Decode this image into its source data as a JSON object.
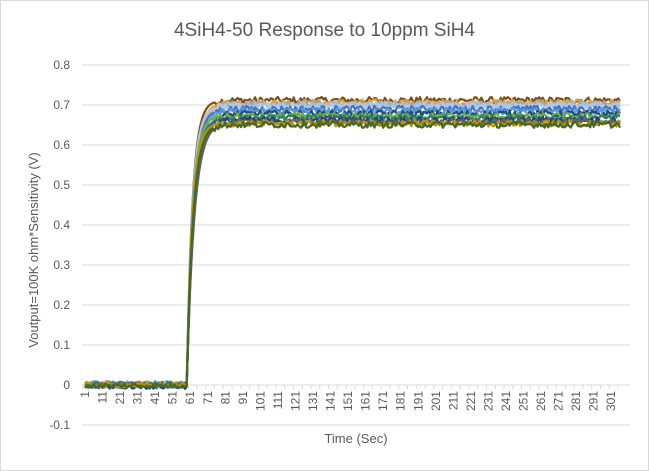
{
  "chart_data": {
    "type": "line",
    "title": "4SiH4-50 Response to 10ppm SiH4",
    "xlabel": "Time (Sec)",
    "ylabel": "Voutput=100K ohm*Sensitivity (V)",
    "ylim": [
      -0.1,
      0.8
    ],
    "y_ticks": [
      "-0.1",
      "0",
      "0.1",
      "0.2",
      "0.3",
      "0.4",
      "0.5",
      "0.6",
      "0.7",
      "0.8"
    ],
    "x_tick_labels": [
      "1",
      "11",
      "21",
      "31",
      "41",
      "51",
      "61",
      "71",
      "81",
      "91",
      "101",
      "111",
      "121",
      "131",
      "141",
      "151",
      "161",
      "171",
      "181",
      "191",
      "201",
      "211",
      "221",
      "231",
      "241",
      "251",
      "261",
      "271",
      "281",
      "291",
      "301"
    ],
    "x_range": [
      1,
      310
    ],
    "step_time": 59,
    "grid": true,
    "legend": "none",
    "series": [
      {
        "color": "#7f4f12",
        "baseline": 0.0,
        "plateau": 0.712
      },
      {
        "color": "#e3a22e",
        "baseline": 0.002,
        "plateau": 0.706
      },
      {
        "color": "#a5a5a5",
        "baseline": 0.004,
        "plateau": 0.703
      },
      {
        "color": "#9dc3e6",
        "baseline": -0.003,
        "plateau": 0.7
      },
      {
        "color": "#b4c7e7",
        "baseline": 0.001,
        "plateau": 0.697
      },
      {
        "color": "#4472c4",
        "baseline": -0.002,
        "plateau": 0.69
      },
      {
        "color": "#5b9bd5",
        "baseline": 0.003,
        "plateau": 0.685
      },
      {
        "color": "#1f4e79",
        "baseline": 0.0,
        "plateau": 0.678
      },
      {
        "color": "#70ad47",
        "baseline": -0.001,
        "plateau": 0.672
      },
      {
        "color": "#2e7d6b",
        "baseline": 0.002,
        "plateau": 0.667
      },
      {
        "color": "#264478",
        "baseline": -0.004,
        "plateau": 0.662
      },
      {
        "color": "#636363",
        "baseline": 0.001,
        "plateau": 0.657
      },
      {
        "color": "#bf9000",
        "baseline": 0.0,
        "plateau": 0.654
      },
      {
        "color": "#43682b",
        "baseline": -0.002,
        "plateau": 0.651
      }
    ]
  }
}
